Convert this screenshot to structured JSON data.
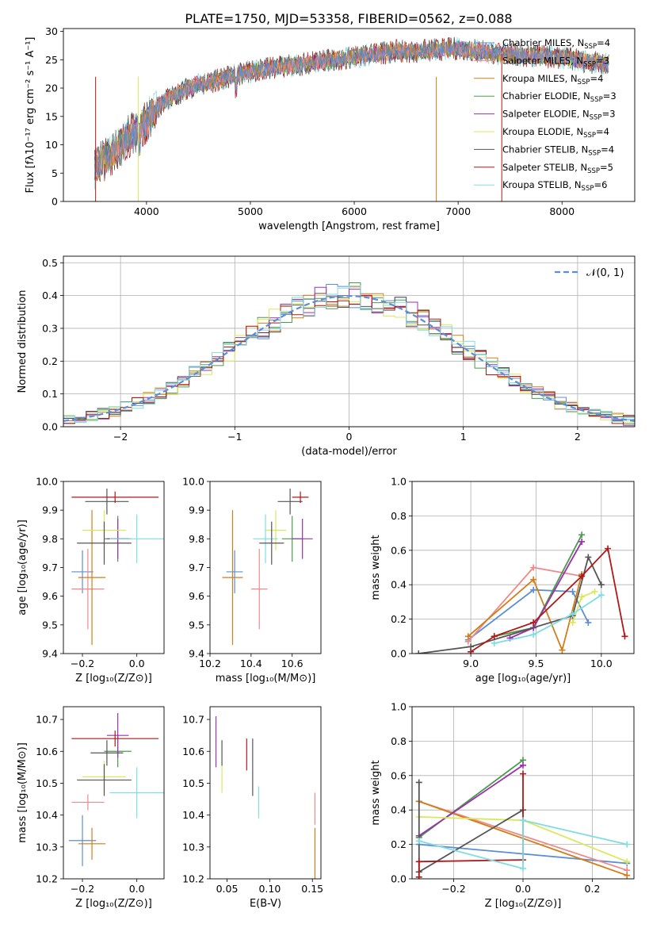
{
  "figure": {
    "title": "PLATE=1750, MJD=53358, FIBERID=0562, z=0.088"
  },
  "colors": {
    "Chabrier MILES": "#5b8ed6",
    "Salpeter MILES": "#f08a8a",
    "Kroupa MILES": "#d07d1a",
    "Chabrier ELODIE": "#4c9a4c",
    "Salpeter ELODIE": "#9b30b0",
    "Kroupa ELODIE": "#d9e85c",
    "Chabrier STELIB": "#555555",
    "Salpeter STELIB": "#b01818",
    "Kroupa STELIB": "#7fdde2",
    "pink": "#e8889a",
    "orange": "#e07f20",
    "gaussian": "#5b8ed6"
  },
  "chart_data": [
    {
      "id": "spectrum",
      "type": "line",
      "title": "PLATE=1750, MJD=53358, FIBERID=0562, z=0.088",
      "xlabel": "wavelength [Angstrom, rest frame]",
      "ylabel": "Flux [fλ10⁻¹⁷ erg cm⁻² s⁻¹ A⁻¹]",
      "xlim": [
        3200,
        8700
      ],
      "ylim": [
        0,
        30.5
      ],
      "xticks": [
        "4000",
        "5000",
        "6000",
        "7000",
        "8000"
      ],
      "yticks": [
        "0",
        "5",
        "10",
        "15",
        "20",
        "25",
        "30"
      ],
      "grid": false,
      "legend_position": "top-right",
      "legend": [
        "Chabrier MILES, N_SSP=4",
        "Salpeter MILES, N_SSP=3",
        "Kroupa MILES, N_SSP=4",
        "Chabrier ELODIE, N_SSP=3",
        "Salpeter ELODIE, N_SSP=3",
        "Kroupa ELODIE, N_SSP=4",
        "Chabrier STELIB, N_SSP=4",
        "Salpeter STELIB, N_SSP=5",
        "Kroupa STELIB, N_SSP=6"
      ],
      "continuum": {
        "x": [
          3500,
          3600,
          3700,
          3800,
          3900,
          4000,
          4100,
          4200,
          4400,
          4600,
          4800,
          5000,
          5200,
          5400,
          5600,
          5800,
          6000,
          6200,
          6400,
          6600,
          6800,
          7000,
          7200,
          7400,
          7600,
          7800,
          8000,
          8200,
          8450
        ],
        "y": [
          6,
          7.5,
          9,
          11,
          12.5,
          14,
          16.5,
          18,
          20,
          21,
          22,
          23,
          23.5,
          24,
          24.5,
          25,
          25.5,
          26,
          26.5,
          26.5,
          26.8,
          27,
          26.5,
          26,
          25.8,
          25.6,
          25.4,
          24.8,
          24.2
        ]
      }
    },
    {
      "id": "residuals",
      "type": "histogram",
      "xlabel": "(data-model)/error",
      "ylabel": "Normed distribution",
      "xlim": [
        -2.5,
        2.5
      ],
      "ylim": [
        0,
        0.52
      ],
      "xticks": [
        "−2",
        "−1",
        "0",
        "1",
        "2"
      ],
      "yticks": [
        "0.0",
        "0.1",
        "0.2",
        "0.3",
        "0.4",
        "0.5"
      ],
      "grid": true,
      "legend_position": "top-right",
      "legend": [
        "𝒩(0, 1)"
      ],
      "gaussian": {
        "mean": 0,
        "sigma": 1
      }
    },
    {
      "id": "age-vs-Z",
      "type": "errorbar",
      "xlabel": "Z [log₁₀(Z/Z⊙)]",
      "ylabel": "age  [log₁₀(age/yr)]",
      "xlim": [
        -0.27,
        0.1
      ],
      "ylim": [
        9.4,
        10.0
      ],
      "xticks": [
        "−0.2",
        "0.0"
      ],
      "yticks": [
        "9.4",
        "9.5",
        "9.6",
        "9.7",
        "9.8",
        "9.9",
        "10.0"
      ],
      "points": [
        {
          "c": "Chabrier MILES",
          "x": -0.2,
          "y": 9.685,
          "xerr": 0.04,
          "yerr": 0.075
        },
        {
          "c": "Salpeter MILES",
          "x": -0.18,
          "y": 9.625,
          "xerr": 0.06,
          "yerr": 0.14
        },
        {
          "c": "Kroupa MILES",
          "x": -0.165,
          "y": 9.665,
          "xerr": 0.05,
          "yerr": 0.235
        },
        {
          "c": "Chabrier ELODIE",
          "x": -0.07,
          "y": 9.8,
          "xerr": 0.05,
          "yerr": 0.08
        },
        {
          "c": "Salpeter ELODIE",
          "x": -0.07,
          "y": 9.8,
          "xerr": 0.04,
          "yerr": 0.07
        },
        {
          "c": "Kroupa ELODIE",
          "x": -0.12,
          "y": 9.83,
          "xerr": 0.08,
          "yerr": 0.07
        },
        {
          "c": "Chabrier STELIB",
          "x": -0.11,
          "y": 9.93,
          "xerr": 0.08,
          "yerr": 0.045
        },
        {
          "c": "Salpeter STELIB",
          "x": -0.08,
          "y": 9.945,
          "xerr": 0.16,
          "yerr": 0.02
        },
        {
          "c": "Kroupa STELIB",
          "x": 0.0,
          "y": 9.8,
          "xerr": 0.1,
          "yerr": 0.085
        },
        {
          "c": "Chabrier STELIB",
          "x": -0.12,
          "y": 9.785,
          "xerr": 0.1,
          "yerr": 0.075
        }
      ]
    },
    {
      "id": "age-vs-mass",
      "type": "errorbar",
      "xlabel": "mass [log₁₀(M/M⊙)]",
      "ylabel": "",
      "xlim": [
        10.2,
        10.74
      ],
      "ylim": [
        9.4,
        10.0
      ],
      "xticks": [
        "10.2",
        "10.4",
        "10.6"
      ],
      "yticks": [
        "9.4",
        "9.5",
        "9.6",
        "9.7",
        "9.8",
        "9.9",
        "10.0"
      ],
      "points": [
        {
          "c": "Chabrier MILES",
          "x": 10.32,
          "y": 9.685,
          "xerr": 0.04,
          "yerr": 0.075
        },
        {
          "c": "Salpeter MILES",
          "x": 10.44,
          "y": 9.625,
          "xerr": 0.04,
          "yerr": 0.14
        },
        {
          "c": "Kroupa MILES",
          "x": 10.31,
          "y": 9.665,
          "xerr": 0.05,
          "yerr": 0.235
        },
        {
          "c": "Chabrier ELODIE",
          "x": 10.6,
          "y": 9.8,
          "xerr": 0.05,
          "yerr": 0.08
        },
        {
          "c": "Salpeter ELODIE",
          "x": 10.65,
          "y": 9.8,
          "xerr": 0.05,
          "yerr": 0.07
        },
        {
          "c": "Kroupa ELODIE",
          "x": 10.52,
          "y": 9.83,
          "xerr": 0.05,
          "yerr": 0.07
        },
        {
          "c": "Chabrier STELIB",
          "x": 10.59,
          "y": 9.93,
          "xerr": 0.06,
          "yerr": 0.045
        },
        {
          "c": "Salpeter STELIB",
          "x": 10.64,
          "y": 9.945,
          "xerr": 0.04,
          "yerr": 0.02
        },
        {
          "c": "Kroupa STELIB",
          "x": 10.47,
          "y": 9.8,
          "xerr": 0.06,
          "yerr": 0.085
        },
        {
          "c": "Chabrier STELIB",
          "x": 10.5,
          "y": 9.785,
          "xerr": 0.06,
          "yerr": 0.075
        }
      ]
    },
    {
      "id": "weight-vs-age",
      "type": "line",
      "xlabel": "age  [log₁₀(age/yr)]",
      "ylabel": "mass weight",
      "xlim": [
        8.55,
        10.25
      ],
      "ylim": [
        0,
        1.0
      ],
      "xticks": [
        "9.0",
        "9.5",
        "10.0"
      ],
      "yticks": [
        "0.0",
        "0.2",
        "0.4",
        "0.6",
        "0.8",
        "1.0"
      ],
      "grid": true,
      "series": [
        {
          "c": "Chabrier MILES",
          "x": [
            8.98,
            9.48,
            9.78,
            9.9
          ],
          "y": [
            0.08,
            0.37,
            0.36,
            0.18
          ]
        },
        {
          "c": "Salpeter MILES",
          "x": [
            8.98,
            9.48,
            9.85
          ],
          "y": [
            0.07,
            0.5,
            0.45
          ]
        },
        {
          "c": "Kroupa MILES",
          "x": [
            8.98,
            9.48,
            9.7,
            9.85
          ],
          "y": [
            0.1,
            0.43,
            0.02,
            0.46
          ]
        },
        {
          "c": "Chabrier ELODIE",
          "x": [
            9.18,
            9.48,
            9.85
          ],
          "y": [
            0.1,
            0.15,
            0.69
          ]
        },
        {
          "c": "Salpeter ELODIE",
          "x": [
            9.3,
            9.48,
            9.85
          ],
          "y": [
            0.09,
            0.15,
            0.65
          ]
        },
        {
          "c": "Kroupa ELODIE",
          "x": [
            9.78,
            9.85,
            9.95
          ],
          "y": [
            0.18,
            0.33,
            0.36
          ]
        },
        {
          "c": "Chabrier STELIB",
          "x": [
            8.6,
            9.0,
            9.78,
            9.9,
            10.0
          ],
          "y": [
            0.0,
            0.04,
            0.22,
            0.56,
            0.4
          ]
        },
        {
          "c": "Salpeter STELIB",
          "x": [
            9.0,
            9.18,
            9.48,
            9.85,
            10.05,
            10.18
          ],
          "y": [
            0.01,
            0.1,
            0.18,
            0.45,
            0.61,
            0.1
          ]
        },
        {
          "c": "Kroupa STELIB",
          "x": [
            9.18,
            9.48,
            9.78,
            10.0
          ],
          "y": [
            0.06,
            0.11,
            0.23,
            0.34
          ]
        }
      ]
    },
    {
      "id": "mass-vs-Z",
      "type": "errorbar",
      "xlabel": "Z [log₁₀(Z/Z⊙)]",
      "ylabel": "mass [log₁₀(M/M⊙)]",
      "xlim": [
        -0.27,
        0.1
      ],
      "ylim": [
        10.2,
        10.74
      ],
      "xticks": [
        "−0.2",
        "0.0"
      ],
      "yticks": [
        "10.2",
        "10.3",
        "10.4",
        "10.5",
        "10.6",
        "10.7"
      ],
      "points": [
        {
          "c": "Chabrier MILES",
          "x": -0.2,
          "y": 10.32,
          "xerr": 0.05,
          "yerr": 0.08
        },
        {
          "c": "Salpeter MILES",
          "x": -0.18,
          "y": 10.44,
          "xerr": 0.06,
          "yerr": 0.025
        },
        {
          "c": "Kroupa MILES",
          "x": -0.165,
          "y": 10.31,
          "xerr": 0.05,
          "yerr": 0.05
        },
        {
          "c": "Chabrier ELODIE",
          "x": -0.07,
          "y": 10.6,
          "xerr": 0.05,
          "yerr": 0.05
        },
        {
          "c": "Salpeter ELODIE",
          "x": -0.07,
          "y": 10.65,
          "xerr": 0.04,
          "yerr": 0.07
        },
        {
          "c": "Kroupa ELODIE",
          "x": -0.12,
          "y": 10.52,
          "xerr": 0.08,
          "yerr": 0.05
        },
        {
          "c": "Chabrier STELIB",
          "x": -0.11,
          "y": 10.595,
          "xerr": 0.06,
          "yerr": 0.04
        },
        {
          "c": "Salpeter STELIB",
          "x": -0.08,
          "y": 10.64,
          "xerr": 0.16,
          "yerr": 0.025
        },
        {
          "c": "Kroupa STELIB",
          "x": 0.0,
          "y": 10.47,
          "xerr": 0.1,
          "yerr": 0.08
        },
        {
          "c": "Chabrier STELIB",
          "x": -0.12,
          "y": 10.51,
          "xerr": 0.1,
          "yerr": 0.05
        }
      ]
    },
    {
      "id": "mass-vs-ebv",
      "type": "errorbar",
      "xlabel": "E(B-V)",
      "ylabel": "",
      "xlim": [
        0.03,
        0.16
      ],
      "ylim": [
        10.2,
        10.74
      ],
      "xticks": [
        "0.05",
        "0.10",
        "0.15"
      ],
      "yticks": [
        "10.2",
        "10.3",
        "10.4",
        "10.5",
        "10.6",
        "10.7"
      ],
      "points": [
        {
          "c": "Salpeter ELODIE",
          "x": 0.037,
          "y": 10.63,
          "xerr": 0,
          "yerr": 0.08
        },
        {
          "c": "Kroupa ELODIE",
          "x": 0.044,
          "y": 10.52,
          "xerr": 0,
          "yerr": 0.05
        },
        {
          "c": "Chabrier STELIB",
          "x": 0.044,
          "y": 10.595,
          "xerr": 0,
          "yerr": 0.04
        },
        {
          "c": "Salpeter STELIB",
          "x": 0.073,
          "y": 10.59,
          "xerr": 0,
          "yerr": 0.05
        },
        {
          "c": "Chabrier STELIB",
          "x": 0.08,
          "y": 10.55,
          "xerr": 0,
          "yerr": 0.09
        },
        {
          "c": "Kroupa STELIB",
          "x": 0.087,
          "y": 10.44,
          "xerr": 0,
          "yerr": 0.05
        },
        {
          "c": "Salpeter MILES",
          "x": 0.153,
          "y": 10.42,
          "xerr": 0,
          "yerr": 0.05
        },
        {
          "c": "Kroupa MILES",
          "x": 0.153,
          "y": 10.28,
          "xerr": 0,
          "yerr": 0.08
        }
      ]
    },
    {
      "id": "weight-vs-Z",
      "type": "line",
      "xlabel": "Z [log₁₀(Z/Z⊙)]",
      "ylabel": "mass weight",
      "xlim": [
        -0.32,
        0.32
      ],
      "ylim": [
        0,
        1.0
      ],
      "xticks": [
        "−0.2",
        "0.0",
        "0.2"
      ],
      "yticks": [
        "0.0",
        "0.2",
        "0.4",
        "0.6",
        "0.8",
        "1.0"
      ],
      "grid": true,
      "series": [
        {
          "c": "Chabrier MILES",
          "x": [
            -0.3,
            0.3
          ],
          "y": [
            0.2,
            0.09
          ]
        },
        {
          "c": "Salpeter MILES",
          "x": [
            -0.3,
            0.3
          ],
          "y": [
            0.45,
            0.05
          ]
        },
        {
          "c": "Kroupa MILES",
          "x": [
            -0.3,
            0.3
          ],
          "y": [
            0.45,
            0.02
          ]
        },
        {
          "c": "Chabrier ELODIE",
          "x": [
            -0.3,
            0.0
          ],
          "y": [
            0.24,
            0.69
          ]
        },
        {
          "c": "Salpeter ELODIE",
          "x": [
            -0.3,
            0.0
          ],
          "y": [
            0.25,
            0.66
          ]
        },
        {
          "c": "Kroupa ELODIE",
          "x": [
            -0.3,
            0.0,
            0.3
          ],
          "y": [
            0.36,
            0.34,
            0.1
          ]
        },
        {
          "c": "Chabrier STELIB",
          "x": [
            -0.3,
            -0.3,
            0.0
          ],
          "y": [
            0.56,
            0.04,
            0.4
          ]
        },
        {
          "c": "Salpeter STELIB",
          "x": [
            -0.3,
            -0.3,
            0.0,
            0.0
          ],
          "y": [
            0.01,
            0.1,
            0.11,
            0.61
          ]
        },
        {
          "c": "Kroupa STELIB",
          "x": [
            -0.3,
            0.0,
            0.0,
            0.3
          ],
          "y": [
            0.22,
            0.06,
            0.34,
            0.2
          ]
        }
      ]
    }
  ]
}
